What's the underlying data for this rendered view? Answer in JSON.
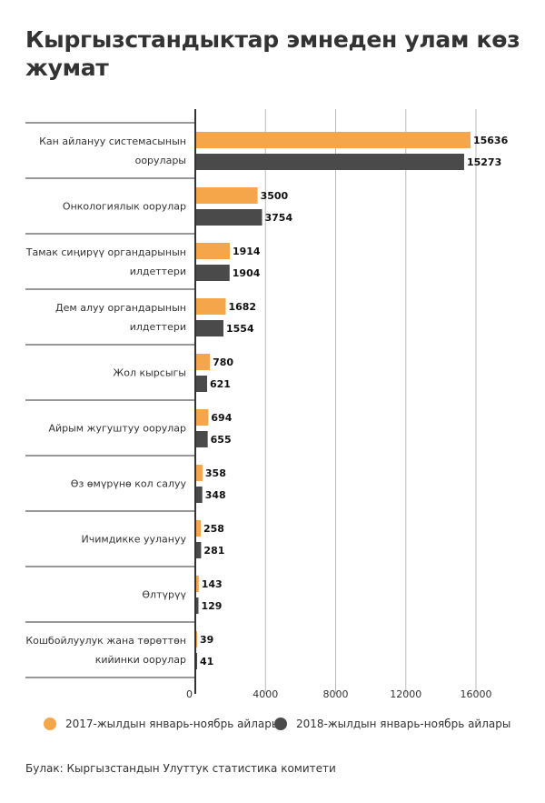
{
  "chart_data": {
    "type": "bar",
    "orientation": "horizontal",
    "title": "Кыргызстандыктар эмнеден улам көз жумат",
    "categories": [
      [
        "Кан айлануу системасынын",
        "оорулары"
      ],
      [
        "Онкологиялык оорулар"
      ],
      [
        "Тамак сиңирүү органдарынын",
        "илдеттери"
      ],
      [
        "Дем алуу органдарынын",
        "илдеттери"
      ],
      [
        "Жол кырсыгы"
      ],
      [
        "Айрым жугуштуу оорулар"
      ],
      [
        "Өз өмүрүнө кол салуу"
      ],
      [
        "Ичимдикке уулануу"
      ],
      [
        "Өлтүрүү"
      ],
      [
        "Кошбойлуулук жана төрөттөн",
        "кийинки оорулар"
      ]
    ],
    "series": [
      {
        "name": "2017-жылдын январь-ноябрь айлары",
        "color": "#f5a54a",
        "values": [
          15636,
          3500,
          1914,
          1682,
          780,
          694,
          358,
          258,
          143,
          39
        ]
      },
      {
        "name": "2018-жылдын январь-ноябрь айлары",
        "color": "#4a4a4a",
        "values": [
          15273,
          3754,
          1904,
          1554,
          621,
          655,
          348,
          281,
          129,
          41
        ]
      }
    ],
    "xlim": [
      0,
      16000
    ],
    "xticks": [
      "0",
      "4000",
      "8000",
      "12000",
      "16000"
    ],
    "grid": true,
    "legend": "bottom"
  },
  "source": "Булак: Кыргызстандын Улуттук статистика комитети"
}
